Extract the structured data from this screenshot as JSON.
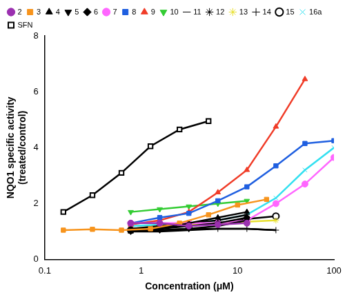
{
  "chart_data": {
    "type": "line",
    "x_label": "Concentration (μM)",
    "y_label": [
      "NQO1 specific activity",
      "(treated/control)"
    ],
    "log": "x",
    "grid": false,
    "legend": "top",
    "xlim": [
      0.1,
      100
    ],
    "xticks": [
      0.1,
      1,
      10,
      100
    ],
    "ylim": [
      0,
      8
    ],
    "yticks": [
      0,
      2,
      4,
      6,
      8
    ],
    "series": [
      {
        "name": "2",
        "color": "#9b30b0",
        "marker": "circle",
        "x": [
          0.78,
          1.56,
          3.125,
          6.25,
          12.5
        ],
        "values": [
          1.3,
          1.3,
          1.2,
          1.25,
          1.3
        ]
      },
      {
        "name": "3",
        "color": "#f7941d",
        "marker": "square",
        "x": [
          0.156,
          0.3125,
          0.625,
          1.25,
          2.5,
          5,
          10,
          20
        ],
        "values": [
          1.05,
          1.08,
          1.05,
          1.1,
          1.3,
          1.6,
          1.95,
          2.15
        ]
      },
      {
        "name": "4",
        "color": "#000000",
        "marker": "triangle",
        "x": [
          0.78,
          1.56,
          3.125,
          6.25,
          12.5
        ],
        "values": [
          1.0,
          1.1,
          1.3,
          1.5,
          1.7
        ]
      },
      {
        "name": "5",
        "color": "#000000",
        "marker": "triangle-down",
        "x": [
          0.78,
          1.56,
          3.125,
          6.25,
          12.5
        ],
        "values": [
          1.0,
          1.05,
          1.1,
          1.2,
          1.4
        ]
      },
      {
        "name": "6",
        "color": "#000000",
        "marker": "diamond",
        "x": [
          0.78,
          1.56,
          3.125,
          6.25,
          12.5
        ],
        "values": [
          1.1,
          1.15,
          1.2,
          1.3,
          1.5
        ]
      },
      {
        "name": "7",
        "color": "#ff66ff",
        "marker": "circle",
        "x": [
          0.78,
          1.56,
          3.125,
          6.25,
          12.5,
          25,
          50,
          100
        ],
        "values": [
          1.3,
          1.3,
          1.3,
          1.3,
          1.4,
          2.0,
          2.7,
          3.65
        ]
      },
      {
        "name": "8",
        "color": "#1f5fe0",
        "marker": "square",
        "x": [
          0.78,
          1.56,
          3.125,
          6.25,
          12.5,
          25,
          50,
          100
        ],
        "values": [
          1.3,
          1.5,
          1.65,
          2.1,
          2.6,
          3.35,
          4.15,
          4.25
        ]
      },
      {
        "name": "9",
        "color": "#f03c28",
        "marker": "triangle",
        "x": [
          0.78,
          1.56,
          3.125,
          6.25,
          12.5,
          25,
          50
        ],
        "values": [
          1.25,
          1.4,
          1.7,
          2.4,
          3.2,
          4.75,
          6.45
        ]
      },
      {
        "name": "10",
        "color": "#33cc33",
        "marker": "triangle-down",
        "x": [
          0.78,
          1.56,
          3.125,
          6.25,
          12.5
        ],
        "values": [
          1.7,
          1.8,
          1.9,
          2.0,
          2.1
        ]
      },
      {
        "name": "11",
        "color": "#000000",
        "marker": "none",
        "x": [
          0.78,
          1.56,
          3.125,
          6.25,
          12.5,
          25
        ],
        "values": [
          1.0,
          1.0,
          1.05,
          1.1,
          1.1,
          1.05
        ]
      },
      {
        "name": "12",
        "color": "#000000",
        "marker": "asterisk",
        "x": [
          0.78,
          1.56,
          3.125,
          6.25,
          12.5
        ],
        "values": [
          1.1,
          1.2,
          1.3,
          1.4,
          1.6
        ]
      },
      {
        "name": "13",
        "color": "#e8e030",
        "marker": "asterisk",
        "x": [
          0.78,
          1.56,
          3.125,
          6.25,
          12.5,
          25
        ],
        "values": [
          1.1,
          1.2,
          1.25,
          1.3,
          1.35,
          1.4
        ]
      },
      {
        "name": "14",
        "color": "#000000",
        "marker": "plus",
        "x": [
          0.78,
          1.56,
          3.125,
          6.25,
          12.5,
          25
        ],
        "values": [
          1.0,
          1.05,
          1.1,
          1.1,
          1.1,
          1.05
        ]
      },
      {
        "name": "15",
        "color": "#000000",
        "marker": "open-circle",
        "x": [
          0.78,
          1.56,
          3.125,
          6.25,
          12.5,
          25
        ],
        "values": [
          1.05,
          1.1,
          1.2,
          1.3,
          1.45,
          1.55
        ]
      },
      {
        "name": "16a",
        "color": "#33e0f0",
        "marker": "x",
        "x": [
          0.78,
          1.56,
          3.125,
          6.25,
          12.5,
          25,
          50,
          100
        ],
        "values": [
          1.2,
          1.25,
          1.3,
          1.4,
          1.6,
          2.2,
          3.2,
          4.0
        ]
      },
      {
        "name": "SFN",
        "color": "#000000",
        "marker": "open-square",
        "x": [
          0.156,
          0.3125,
          0.625,
          1.25,
          2.5,
          5
        ],
        "values": [
          1.7,
          2.3,
          3.1,
          4.05,
          4.65,
          4.95
        ]
      }
    ]
  }
}
